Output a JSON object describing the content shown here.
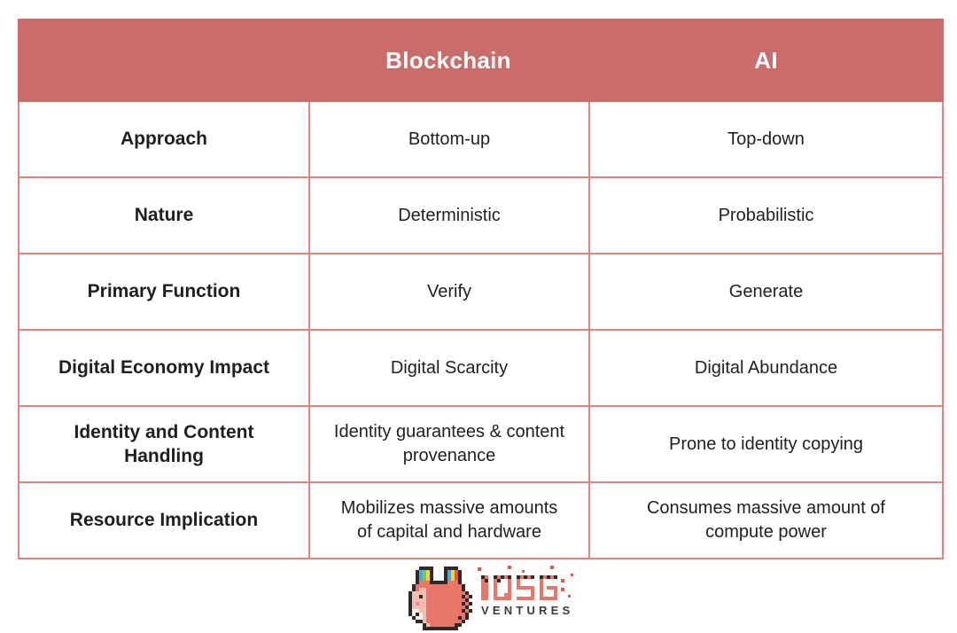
{
  "table": {
    "header": {
      "empty": "",
      "blockchain": "Blockchain",
      "ai": "AI"
    },
    "rows": [
      {
        "label": "Approach",
        "blockchain": "Bottom-up",
        "ai": "Top-down"
      },
      {
        "label": "Nature",
        "blockchain": "Deterministic",
        "ai": "Probabilistic"
      },
      {
        "label": "Primary Function",
        "blockchain": "Verify",
        "ai": "Generate"
      },
      {
        "label": "Digital Economy Impact",
        "blockchain": "Digital Scarcity",
        "ai": "Digital Abundance"
      },
      {
        "label": "Identity and Content Handling",
        "blockchain": "Identity guarantees & content provenance",
        "ai": "Prone to identity copying"
      },
      {
        "label": "Resource Implication",
        "blockchain": "Mobilizes massive amounts of capital and hardware",
        "ai": "Consumes massive amount of compute power"
      }
    ]
  },
  "logo": {
    "brand": "IOSG",
    "subtext": "VENTURES"
  },
  "colors": {
    "header_bg": "#C96C6A",
    "border": "#E2827F",
    "header_text": "#FFFFFF",
    "body_text": "#1F1F1F",
    "logo_salmon": "#E8776A",
    "logo_outline": "#2E2A28",
    "logo_dot_red": "#E2574C"
  },
  "chart_data": {
    "type": "table",
    "columns": [
      "",
      "Blockchain",
      "AI"
    ],
    "rows": [
      [
        "Approach",
        "Bottom-up",
        "Top-down"
      ],
      [
        "Nature",
        "Deterministic",
        "Probabilistic"
      ],
      [
        "Primary Function",
        "Verify",
        "Generate"
      ],
      [
        "Digital Economy Impact",
        "Digital Scarcity",
        "Digital Abundance"
      ],
      [
        "Identity and Content Handling",
        "Identity guarantees & content provenance",
        "Prone to identity copying"
      ],
      [
        "Resource Implication",
        "Mobilizes massive amounts of capital and hardware",
        "Consumes massive amount of compute power"
      ]
    ]
  }
}
